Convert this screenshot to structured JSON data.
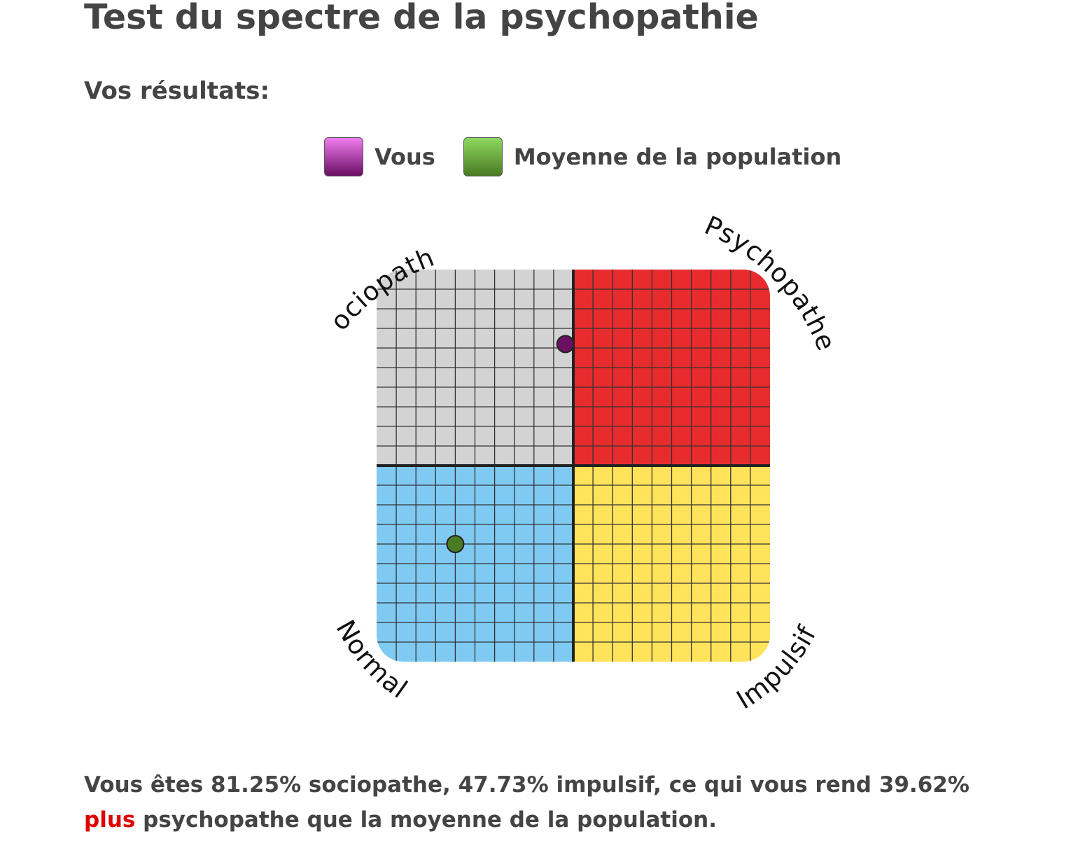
{
  "page": {
    "title": "Test du spectre de la psychopathie",
    "subtitle": "Vos résultats:"
  },
  "legend": [
    {
      "label": "Vous",
      "color_top": "#f07cf0",
      "color_bottom": "#6a0f62"
    },
    {
      "label": "Moyenne de la population",
      "color_top": "#8fd860",
      "color_bottom": "#4a7a22"
    }
  ],
  "chart_data": {
    "type": "scatter",
    "title": "",
    "xlabel": "",
    "ylabel": "",
    "xlim": [
      -10,
      10
    ],
    "ylim": [
      -10,
      10
    ],
    "grid": true,
    "grid_divisions": 20,
    "quadrants": [
      {
        "label": "Sociopathe",
        "position": "top-left",
        "color": "#d3d3d3"
      },
      {
        "label": "Psychopathe",
        "position": "top-right",
        "color": "#e82c2e"
      },
      {
        "label": "Normal",
        "position": "bottom-left",
        "color": "#7fcaf3"
      },
      {
        "label": "Impulsif",
        "position": "bottom-right",
        "color": "#ffe35b"
      }
    ],
    "series": [
      {
        "name": "Vous",
        "color": "#6a0f62",
        "points": [
          {
            "x": -0.4,
            "y": 6.2
          }
        ]
      },
      {
        "name": "Moyenne de la population",
        "color": "#4a7a22",
        "points": [
          {
            "x": -6.0,
            "y": -4.0
          }
        ]
      }
    ]
  },
  "summary": {
    "before": "Vous êtes 81.25% sociopathe, 47.73% impulsif, ce qui vous rend 39.62% ",
    "highlight": "plus",
    "after": " psychopathe que la moyenne de la population.",
    "highlight_color": "#e00000"
  }
}
